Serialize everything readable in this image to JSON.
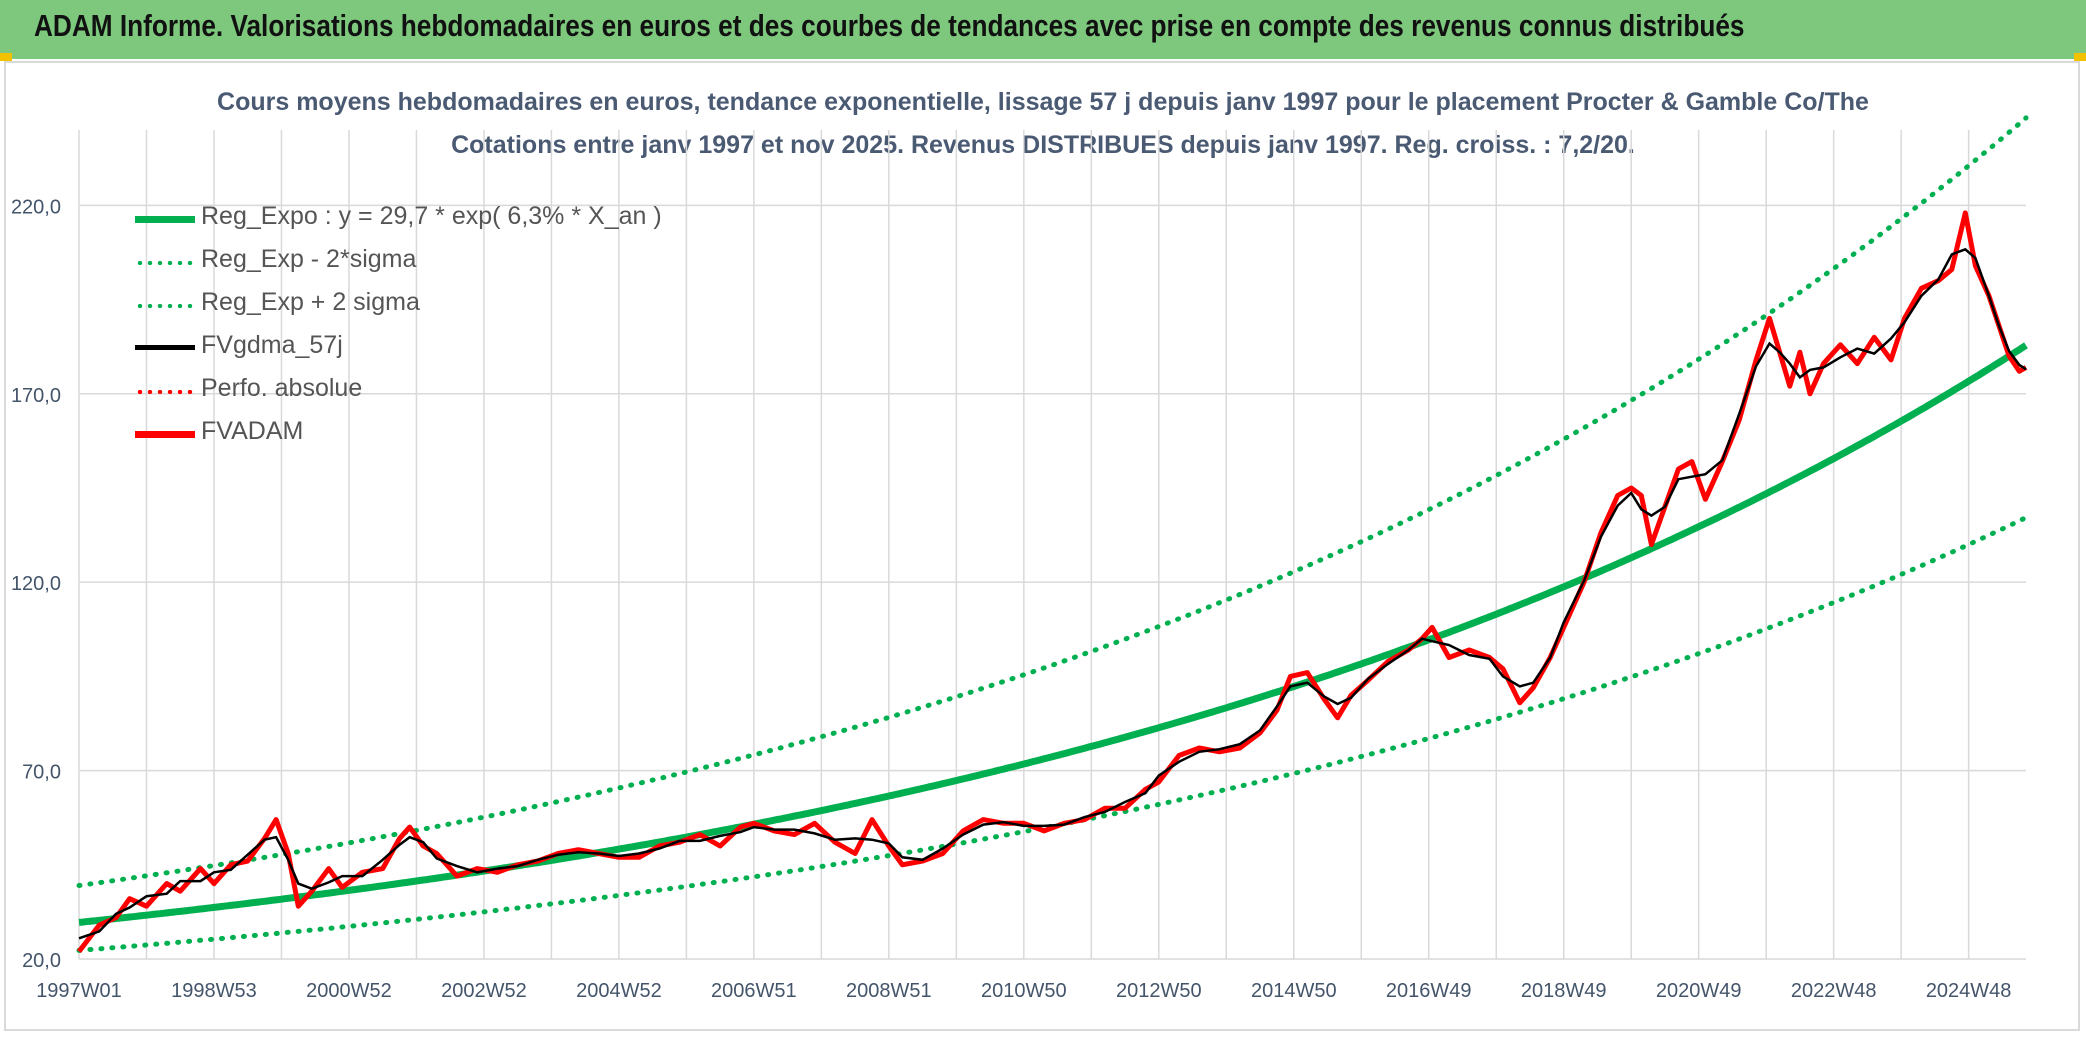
{
  "header": {
    "title": "ADAM Informe. Valorisations hebdomadaires en euros et des courbes de tendances avec prise en compte des revenus connus distribués"
  },
  "colors": {
    "banner": "#7dc87d",
    "trend": "#00b050",
    "smooth": "#000000",
    "price": "#ff0000",
    "grid": "#d9d9d9",
    "axis_text": "#44546a"
  },
  "chart_data": {
    "type": "line",
    "title_line1": "Cours moyens hebdomadaires en euros, tendance exponentielle, lissage 57 j depuis janv 1997 pour le placement Procter & Gamble Co/The",
    "title_line2": "Cotations entre janv 1997 et nov 2025. Revenus DISTRIBUES depuis janv 1997. Reg. croiss. : 7,2/20.",
    "xlabel": "",
    "ylabel": "",
    "ylim": [
      20,
      240
    ],
    "xlim": [
      1997.0,
      2025.85
    ],
    "y_ticks": [
      20,
      70,
      120,
      170,
      220
    ],
    "y_tick_labels": [
      "20,0",
      "70,0",
      "120,0",
      "170,0",
      "220,0"
    ],
    "x_ticks": [
      1997.0,
      1999.0,
      2001.0,
      2003.0,
      2005.0,
      2007.0,
      2009.0,
      2011.0,
      2013.0,
      2015.0,
      2017.0,
      2019.0,
      2021.0,
      2023.0,
      2025.0
    ],
    "x_tick_labels": [
      "1997W01",
      "1998W53",
      "2000W52",
      "2002W52",
      "2004W52",
      "2006W51",
      "2008W51",
      "2010W50",
      "2012W50",
      "2014W50",
      "2016W49",
      "2018W49",
      "2020W49",
      "2022W48",
      "2024W48"
    ],
    "grid": true,
    "legend_position": "top-left",
    "legend": [
      {
        "label": "Reg_Expo : y = 29,7 * exp( 6,3% *  X_an )",
        "style": "solid-thick",
        "color": "#00b050"
      },
      {
        "label": "Reg_Exp - 2*sigma",
        "style": "dotted",
        "color": "#00b050"
      },
      {
        "label": "Reg_Exp + 2 sigma",
        "style": "dotted",
        "color": "#00b050"
      },
      {
        "label": "FVgdma_57j",
        "style": "solid",
        "color": "#000000"
      },
      {
        "label": "Perfo. absolue",
        "style": "dotted",
        "color": "#ff0000"
      },
      {
        "label": "FVADAM",
        "style": "solid-thick",
        "color": "#ff0000"
      }
    ],
    "trend": {
      "a": 29.7,
      "b": 0.063,
      "lower_factor": 0.75,
      "upper_factor": 1.33
    },
    "series": [
      {
        "name": "FVADAM",
        "points": [
          [
            1997.0,
            22
          ],
          [
            1997.3,
            29
          ],
          [
            1997.55,
            31
          ],
          [
            1997.75,
            36
          ],
          [
            1998.0,
            34
          ],
          [
            1998.3,
            40
          ],
          [
            1998.5,
            38
          ],
          [
            1998.8,
            44
          ],
          [
            1999.0,
            40
          ],
          [
            1999.25,
            45
          ],
          [
            1999.5,
            46
          ],
          [
            1999.75,
            52
          ],
          [
            1999.92,
            57
          ],
          [
            2000.1,
            48
          ],
          [
            2000.25,
            34
          ],
          [
            2000.45,
            38
          ],
          [
            2000.7,
            44
          ],
          [
            2000.9,
            39
          ],
          [
            2001.2,
            43
          ],
          [
            2001.5,
            44
          ],
          [
            2001.75,
            52
          ],
          [
            2001.9,
            55
          ],
          [
            2002.1,
            50
          ],
          [
            2002.3,
            48
          ],
          [
            2002.6,
            42
          ],
          [
            2002.9,
            44
          ],
          [
            2003.2,
            43
          ],
          [
            2003.5,
            45
          ],
          [
            2003.8,
            46
          ],
          [
            2004.1,
            48
          ],
          [
            2004.4,
            49
          ],
          [
            2004.7,
            48
          ],
          [
            2005.0,
            47
          ],
          [
            2005.3,
            47
          ],
          [
            2005.6,
            50
          ],
          [
            2005.9,
            51
          ],
          [
            2006.2,
            53
          ],
          [
            2006.5,
            50
          ],
          [
            2006.8,
            55
          ],
          [
            2007.0,
            56
          ],
          [
            2007.3,
            54
          ],
          [
            2007.6,
            53
          ],
          [
            2007.9,
            56
          ],
          [
            2008.2,
            51
          ],
          [
            2008.5,
            48
          ],
          [
            2008.75,
            57
          ],
          [
            2009.0,
            50
          ],
          [
            2009.2,
            45
          ],
          [
            2009.5,
            46
          ],
          [
            2009.8,
            48
          ],
          [
            2010.1,
            54
          ],
          [
            2010.4,
            57
          ],
          [
            2010.7,
            56
          ],
          [
            2011.0,
            56
          ],
          [
            2011.3,
            54
          ],
          [
            2011.6,
            56
          ],
          [
            2011.9,
            57
          ],
          [
            2012.2,
            60
          ],
          [
            2012.5,
            60
          ],
          [
            2012.8,
            65
          ],
          [
            2013.0,
            67
          ],
          [
            2013.3,
            74
          ],
          [
            2013.6,
            76
          ],
          [
            2013.9,
            75
          ],
          [
            2014.2,
            76
          ],
          [
            2014.5,
            80
          ],
          [
            2014.75,
            86
          ],
          [
            2014.95,
            95
          ],
          [
            2015.2,
            96
          ],
          [
            2015.45,
            89
          ],
          [
            2015.65,
            84
          ],
          [
            2015.85,
            90
          ],
          [
            2016.1,
            94
          ],
          [
            2016.4,
            99
          ],
          [
            2016.7,
            102
          ],
          [
            2016.9,
            105
          ],
          [
            2017.05,
            108
          ],
          [
            2017.3,
            100
          ],
          [
            2017.6,
            102
          ],
          [
            2017.9,
            100
          ],
          [
            2018.1,
            97
          ],
          [
            2018.35,
            88
          ],
          [
            2018.55,
            92
          ],
          [
            2018.8,
            100
          ],
          [
            2019.0,
            108
          ],
          [
            2019.3,
            120
          ],
          [
            2019.55,
            133
          ],
          [
            2019.8,
            143
          ],
          [
            2020.0,
            145
          ],
          [
            2020.15,
            143
          ],
          [
            2020.3,
            130
          ],
          [
            2020.5,
            140
          ],
          [
            2020.7,
            150
          ],
          [
            2020.9,
            152
          ],
          [
            2021.1,
            142
          ],
          [
            2021.35,
            152
          ],
          [
            2021.6,
            163
          ],
          [
            2021.85,
            179
          ],
          [
            2022.05,
            190
          ],
          [
            2022.2,
            181
          ],
          [
            2022.35,
            172
          ],
          [
            2022.5,
            181
          ],
          [
            2022.65,
            170
          ],
          [
            2022.85,
            178
          ],
          [
            2023.1,
            183
          ],
          [
            2023.35,
            178
          ],
          [
            2023.6,
            185
          ],
          [
            2023.85,
            179
          ],
          [
            2024.05,
            190
          ],
          [
            2024.3,
            198
          ],
          [
            2024.55,
            200
          ],
          [
            2024.75,
            203
          ],
          [
            2024.95,
            218
          ],
          [
            2025.1,
            204
          ],
          [
            2025.3,
            196
          ],
          [
            2025.45,
            188
          ],
          [
            2025.6,
            180
          ],
          [
            2025.75,
            176
          ],
          [
            2025.85,
            177
          ]
        ]
      }
    ]
  }
}
